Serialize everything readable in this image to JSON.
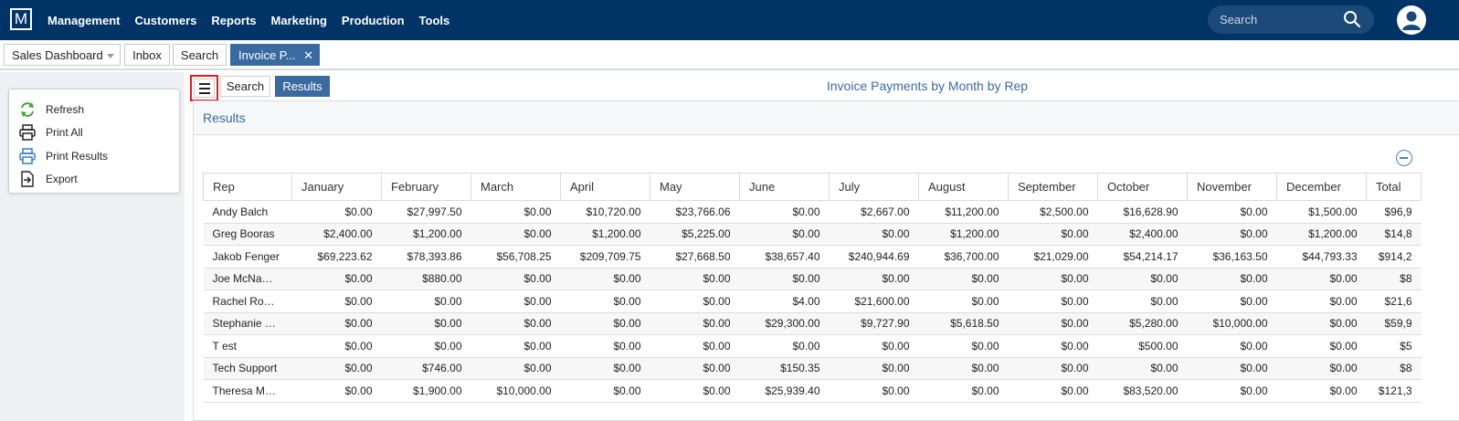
{
  "app": {
    "logo": "M"
  },
  "nav": {
    "items": [
      "Management",
      "Customers",
      "Reports",
      "Marketing",
      "Production",
      "Tools"
    ]
  },
  "search": {
    "placeholder": "Search"
  },
  "tabs": {
    "dashboard": "Sales Dashboard",
    "inbox": "Inbox",
    "search": "Search",
    "active": "Invoice P..."
  },
  "sidebar": {
    "actions": [
      {
        "label": "Refresh",
        "icon": "refresh-icon"
      },
      {
        "label": "Print All",
        "icon": "printer-icon"
      },
      {
        "label": "Print Results",
        "icon": "printer-blue-icon"
      },
      {
        "label": "Export",
        "icon": "export-icon"
      }
    ]
  },
  "toolbar": {
    "search_label": "Search",
    "results_label": "Results"
  },
  "report": {
    "title": "Invoice Payments by Month by Rep",
    "panel_title": "Results"
  },
  "table": {
    "columns": [
      "Rep",
      "January",
      "February",
      "March",
      "April",
      "May",
      "June",
      "July",
      "August",
      "September",
      "October",
      "November",
      "December",
      "Total"
    ],
    "rows": [
      [
        "Andy Balch",
        "$0.00",
        "$27,997.50",
        "$0.00",
        "$10,720.00",
        "$23,766.06",
        "$0.00",
        "$2,667.00",
        "$11,200.00",
        "$2,500.00",
        "$16,628.90",
        "$0.00",
        "$1,500.00",
        "$96,9"
      ],
      [
        "Greg Booras",
        "$2,400.00",
        "$1,200.00",
        "$0.00",
        "$1,200.00",
        "$5,225.00",
        "$0.00",
        "$0.00",
        "$1,200.00",
        "$0.00",
        "$2,400.00",
        "$0.00",
        "$1,200.00",
        "$14,8"
      ],
      [
        "Jakob Fenger",
        "$69,223.62",
        "$78,393.86",
        "$56,708.25",
        "$209,709.75",
        "$27,668.50",
        "$38,657.40",
        "$240,944.69",
        "$36,700.00",
        "$21,029.00",
        "$54,214.17",
        "$36,163.50",
        "$44,793.33",
        "$914,2"
      ],
      [
        "Joe McNa…",
        "$0.00",
        "$880.00",
        "$0.00",
        "$0.00",
        "$0.00",
        "$0.00",
        "$0.00",
        "$0.00",
        "$0.00",
        "$0.00",
        "$0.00",
        "$0.00",
        "$8"
      ],
      [
        "Rachel Ro…",
        "$0.00",
        "$0.00",
        "$0.00",
        "$0.00",
        "$0.00",
        "$4.00",
        "$21,600.00",
        "$0.00",
        "$0.00",
        "$0.00",
        "$0.00",
        "$0.00",
        "$21,6"
      ],
      [
        "Stephanie …",
        "$0.00",
        "$0.00",
        "$0.00",
        "$0.00",
        "$0.00",
        "$29,300.00",
        "$9,727.90",
        "$5,618.50",
        "$0.00",
        "$5,280.00",
        "$10,000.00",
        "$0.00",
        "$59,9"
      ],
      [
        "T est",
        "$0.00",
        "$0.00",
        "$0.00",
        "$0.00",
        "$0.00",
        "$0.00",
        "$0.00",
        "$0.00",
        "$0.00",
        "$500.00",
        "$0.00",
        "$0.00",
        "$5"
      ],
      [
        "Tech Support",
        "$0.00",
        "$746.00",
        "$0.00",
        "$0.00",
        "$0.00",
        "$150.35",
        "$0.00",
        "$0.00",
        "$0.00",
        "$0.00",
        "$0.00",
        "$0.00",
        "$8"
      ],
      [
        "Theresa M…",
        "$0.00",
        "$1,900.00",
        "$10,000.00",
        "$0.00",
        "$0.00",
        "$25,939.40",
        "$0.00",
        "$0.00",
        "$0.00",
        "$83,520.00",
        "$0.00",
        "$0.00",
        "$121,3"
      ]
    ]
  }
}
